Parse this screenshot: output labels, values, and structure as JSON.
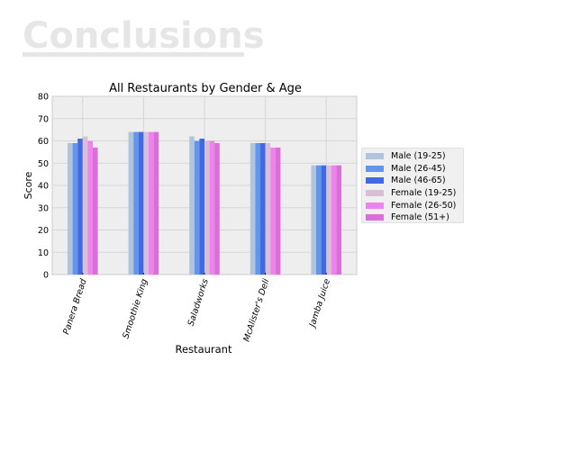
{
  "slide": {
    "title": "Conclusions"
  },
  "chart_data": {
    "type": "bar",
    "title": "All Restaurants by Gender & Age",
    "xlabel": "Restaurant",
    "ylabel": "Score",
    "ylim": [
      0,
      80
    ],
    "yticks": [
      0,
      10,
      20,
      30,
      40,
      50,
      60,
      70,
      80
    ],
    "grid": true,
    "legend_position": "right",
    "categories": [
      "Panera Bread",
      "Smoothie King",
      "Saladworks",
      "McAlister's Deli",
      "Jamba Juice"
    ],
    "series": [
      {
        "name": "Male (19-25)",
        "color": "#b0c4de",
        "values": [
          59,
          64,
          62,
          59,
          49
        ]
      },
      {
        "name": "Male (26-45)",
        "color": "#6495ed",
        "values": [
          59,
          64,
          60,
          59,
          49
        ]
      },
      {
        "name": "Male (46-65)",
        "color": "#4169e1",
        "values": [
          61,
          64,
          61,
          59,
          49
        ]
      },
      {
        "name": "Female (19-25)",
        "color": "#d8bfd8",
        "values": [
          62,
          64,
          60,
          59,
          49
        ]
      },
      {
        "name": "Female (26-50)",
        "color": "#ee82ee",
        "values": [
          60,
          64,
          60,
          57,
          49
        ]
      },
      {
        "name": "Female (51+)",
        "color": "#da70d6",
        "values": [
          57,
          64,
          59,
          57,
          49
        ]
      }
    ]
  }
}
